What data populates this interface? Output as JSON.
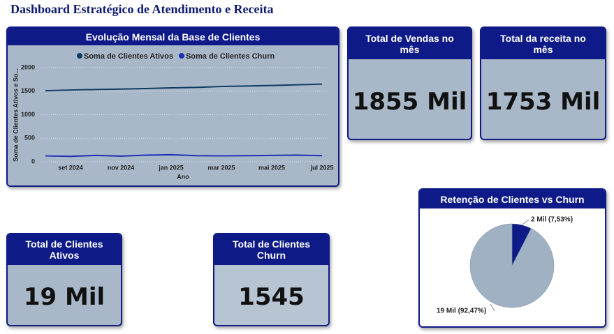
{
  "title": "Dashboard Estratégico de Atendimento e Receita",
  "cards": [
    {
      "title": "Total de Vendas no mês",
      "value": "1855 Mil"
    },
    {
      "title": "Total da receita no mês",
      "value": "1753 Mil"
    },
    {
      "title": "Total de Clientes Ativos",
      "value": "19 Mil"
    },
    {
      "title": "Total de Clientes Churn",
      "value": "1545"
    }
  ],
  "chart_data": [
    {
      "type": "line",
      "title": "Evolução Mensal da Base de Clientes",
      "x_label": "Ano",
      "y_label": "Soma de Clientes Ativos e So...",
      "categories": [
        null,
        "set 2024",
        null,
        "nov 2024",
        null,
        "jan 2025",
        null,
        "mar 2025",
        null,
        "mai 2025",
        null,
        "jul 2025"
      ],
      "series": [
        {
          "name": "Soma de Clientes Ativos",
          "color": "#0f3b63",
          "values": [
            1510,
            1525,
            1535,
            1545,
            1555,
            1570,
            1580,
            1600,
            1610,
            1620,
            1635,
            1650
          ]
        },
        {
          "name": "Soma de Clientes Churn",
          "color": "#1d2fb5",
          "values": [
            125,
            115,
            135,
            120,
            140,
            150,
            130,
            125,
            130,
            135,
            140,
            130
          ]
        }
      ],
      "ylim": [
        0,
        2000
      ],
      "yticks": [
        0,
        500,
        1000,
        1500,
        2000
      ],
      "grid": true
    },
    {
      "type": "pie",
      "title": "Retenção de Clientes vs Churn",
      "values": [
        7.53,
        92.47
      ],
      "value_labels": [
        "2 Mil (7,53%)",
        "19 Mil (92,47%)"
      ],
      "colors": [
        "#0d1a87",
        "#9fb1c3"
      ]
    }
  ]
}
